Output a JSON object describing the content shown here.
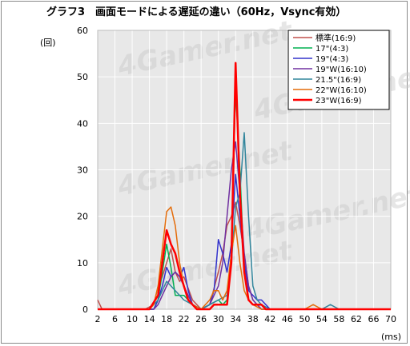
{
  "chart_data": {
    "type": "line",
    "title": "グラフ3　画面モードによる遅延の違い（60Hz，Vsync有効）",
    "ylabel": "(回)",
    "xlabel": "(ms)",
    "ylim": [
      0,
      60
    ],
    "yticks": [
      0,
      10,
      20,
      30,
      40,
      50,
      60
    ],
    "x": [
      2,
      6,
      10,
      14,
      18,
      22,
      26,
      30,
      34,
      38,
      42,
      46,
      50,
      54,
      58,
      62,
      66,
      70
    ],
    "grid": true,
    "legend_position": "top-right",
    "watermark": "4Gamer.net",
    "series": [
      {
        "name": "標準(16:9)",
        "color": "#c0504d",
        "width": 1.5,
        "points": [
          [
            2,
            2
          ],
          [
            3,
            0
          ],
          [
            6,
            0
          ],
          [
            10,
            0
          ],
          [
            13,
            0
          ],
          [
            15,
            1
          ],
          [
            16,
            5
          ],
          [
            17,
            7
          ],
          [
            18,
            10
          ],
          [
            19,
            13
          ],
          [
            20,
            8
          ],
          [
            21,
            6
          ],
          [
            22,
            7
          ],
          [
            24,
            2
          ],
          [
            26,
            0
          ],
          [
            28,
            1
          ],
          [
            30,
            8
          ],
          [
            31,
            12
          ],
          [
            32,
            18
          ],
          [
            33,
            20
          ],
          [
            34,
            23
          ],
          [
            35,
            18
          ],
          [
            36,
            12
          ],
          [
            37,
            5
          ],
          [
            38,
            2
          ],
          [
            39,
            1
          ],
          [
            40,
            0
          ],
          [
            44,
            0
          ],
          [
            70,
            0
          ]
        ]
      },
      {
        "name": "17\"(4:3)",
        "color": "#00b050",
        "width": 1.5,
        "points": [
          [
            2,
            0
          ],
          [
            14,
            0
          ],
          [
            15,
            0
          ],
          [
            16,
            2
          ],
          [
            17,
            8
          ],
          [
            18,
            14
          ],
          [
            19,
            9
          ],
          [
            20,
            3
          ],
          [
            22,
            3
          ],
          [
            23,
            2
          ],
          [
            24,
            1
          ],
          [
            26,
            0
          ],
          [
            28,
            1
          ],
          [
            30,
            2
          ],
          [
            31,
            1
          ],
          [
            32,
            2
          ],
          [
            33,
            12
          ],
          [
            34,
            47
          ],
          [
            35,
            30
          ],
          [
            36,
            8
          ],
          [
            37,
            2
          ],
          [
            38,
            1
          ],
          [
            39,
            1
          ],
          [
            40,
            1
          ],
          [
            41,
            0
          ],
          [
            70,
            0
          ]
        ]
      },
      {
        "name": "19\"(4:3)",
        "color": "#3333cc",
        "width": 1.5,
        "points": [
          [
            2,
            0
          ],
          [
            15,
            0
          ],
          [
            16,
            2
          ],
          [
            17,
            5
          ],
          [
            18,
            9
          ],
          [
            19,
            7
          ],
          [
            20,
            8
          ],
          [
            21,
            7
          ],
          [
            22,
            9
          ],
          [
            23,
            4
          ],
          [
            24,
            1
          ],
          [
            26,
            0
          ],
          [
            28,
            1
          ],
          [
            29,
            4
          ],
          [
            30,
            15
          ],
          [
            31,
            12
          ],
          [
            32,
            8
          ],
          [
            33,
            14
          ],
          [
            34,
            29
          ],
          [
            35,
            20
          ],
          [
            36,
            10
          ],
          [
            37,
            4
          ],
          [
            38,
            3
          ],
          [
            39,
            2
          ],
          [
            40,
            2
          ],
          [
            42,
            0
          ],
          [
            70,
            0
          ]
        ]
      },
      {
        "name": "19\"W(16:10)",
        "color": "#7030a0",
        "width": 1.5,
        "points": [
          [
            2,
            0
          ],
          [
            15,
            0
          ],
          [
            16,
            1
          ],
          [
            17,
            3
          ],
          [
            18,
            5
          ],
          [
            19,
            7
          ],
          [
            20,
            8
          ],
          [
            21,
            7
          ],
          [
            22,
            5
          ],
          [
            23,
            3
          ],
          [
            24,
            1
          ],
          [
            26,
            0
          ],
          [
            28,
            1
          ],
          [
            30,
            5
          ],
          [
            31,
            10
          ],
          [
            32,
            20
          ],
          [
            33,
            30
          ],
          [
            34,
            36
          ],
          [
            35,
            25
          ],
          [
            36,
            12
          ],
          [
            37,
            5
          ],
          [
            38,
            2
          ],
          [
            39,
            1
          ],
          [
            40,
            0
          ],
          [
            70,
            0
          ]
        ]
      },
      {
        "name": "21.5\"(16:9)",
        "color": "#31859c",
        "width": 1.5,
        "points": [
          [
            2,
            0
          ],
          [
            14,
            0
          ],
          [
            16,
            2
          ],
          [
            17,
            4
          ],
          [
            18,
            6
          ],
          [
            19,
            5
          ],
          [
            20,
            4
          ],
          [
            22,
            2
          ],
          [
            24,
            1
          ],
          [
            26,
            0
          ],
          [
            28,
            1
          ],
          [
            30,
            2
          ],
          [
            32,
            3
          ],
          [
            33,
            10
          ],
          [
            34,
            22
          ],
          [
            35,
            25
          ],
          [
            36,
            38
          ],
          [
            37,
            20
          ],
          [
            38,
            5
          ],
          [
            39,
            2
          ],
          [
            40,
            1
          ],
          [
            42,
            0
          ],
          [
            54,
            0
          ],
          [
            56,
            1
          ],
          [
            58,
            0
          ],
          [
            70,
            0
          ]
        ]
      },
      {
        "name": "22\"W(16:10)",
        "color": "#e46c0a",
        "width": 1.5,
        "points": [
          [
            2,
            0
          ],
          [
            14,
            0
          ],
          [
            15,
            1
          ],
          [
            16,
            5
          ],
          [
            17,
            13
          ],
          [
            18,
            21
          ],
          [
            19,
            22
          ],
          [
            20,
            18
          ],
          [
            21,
            10
          ],
          [
            22,
            5
          ],
          [
            23,
            2
          ],
          [
            24,
            1
          ],
          [
            26,
            0
          ],
          [
            28,
            2
          ],
          [
            29,
            4
          ],
          [
            30,
            4
          ],
          [
            31,
            2
          ],
          [
            32,
            4
          ],
          [
            33,
            12
          ],
          [
            34,
            18
          ],
          [
            35,
            10
          ],
          [
            36,
            4
          ],
          [
            37,
            2
          ],
          [
            38,
            1
          ],
          [
            40,
            0
          ],
          [
            44,
            0
          ],
          [
            50,
            0
          ],
          [
            52,
            1
          ],
          [
            54,
            0
          ],
          [
            70,
            0
          ]
        ]
      },
      {
        "name": "23\"W(16:9)",
        "color": "#ff0000",
        "width": 2.5,
        "points": [
          [
            2,
            0
          ],
          [
            14,
            0
          ],
          [
            16,
            3
          ],
          [
            17,
            10
          ],
          [
            18,
            17
          ],
          [
            19,
            14
          ],
          [
            20,
            12
          ],
          [
            21,
            8
          ],
          [
            22,
            5
          ],
          [
            23,
            2
          ],
          [
            24,
            1
          ],
          [
            25,
            0
          ],
          [
            26,
            0
          ],
          [
            28,
            0
          ],
          [
            29,
            1
          ],
          [
            30,
            1
          ],
          [
            32,
            1
          ],
          [
            33,
            10
          ],
          [
            34,
            53
          ],
          [
            35,
            25
          ],
          [
            36,
            8
          ],
          [
            37,
            2
          ],
          [
            38,
            1
          ],
          [
            39,
            1
          ],
          [
            40,
            1
          ],
          [
            41,
            0
          ],
          [
            70,
            0
          ]
        ]
      }
    ]
  }
}
